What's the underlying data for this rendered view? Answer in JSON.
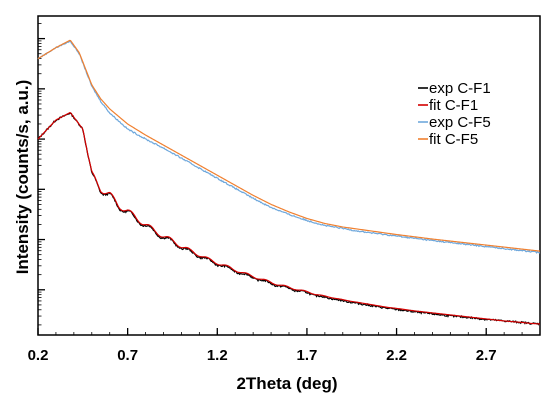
{
  "chart_data": {
    "type": "line",
    "title": "",
    "xlabel": "2Theta (deg)",
    "ylabel": "Intensity (counts/s, a.u.)",
    "xlim": [
      0.2,
      3.0
    ],
    "y_scale": "log",
    "y_ticks_labeled": false,
    "grid": false,
    "legend_position": "top-right",
    "x_ticks": [
      "0.2",
      "0.7",
      "1.2",
      "1.7",
      "2.2",
      "2.7"
    ],
    "series": [
      {
        "name": "exp C-F1",
        "color": "#000000",
        "x": [
          0.2,
          0.3,
          0.38,
          0.45,
          0.5,
          0.55,
          0.6,
          0.65,
          0.7,
          0.75,
          0.8,
          0.85,
          0.9,
          0.95,
          1.0,
          1.05,
          1.1,
          1.15,
          1.2,
          1.25,
          1.3,
          1.35,
          1.4,
          1.45,
          1.5,
          1.55,
          1.6,
          1.65,
          1.7,
          1.75,
          1.8,
          1.85,
          1.9,
          1.95,
          2.0,
          2.05,
          2.1,
          2.15,
          2.2,
          2.3,
          2.4,
          2.5,
          2.6,
          2.7,
          2.8,
          2.9,
          2.95,
          3.0
        ],
        "y": [
          0.0,
          0.38,
          0.52,
          0.2,
          -0.72,
          -1.02,
          -1.12,
          -1.35,
          -1.45,
          -1.6,
          -1.72,
          -1.85,
          -1.95,
          -2.05,
          -2.15,
          -2.25,
          -2.32,
          -2.42,
          -2.48,
          -2.56,
          -2.62,
          -2.7,
          -2.75,
          -2.82,
          -2.87,
          -2.93,
          -2.97,
          -3.02,
          -3.06,
          -3.11,
          -3.15,
          -3.18,
          -3.22,
          -3.25,
          -3.28,
          -3.31,
          -3.34,
          -3.37,
          -3.39,
          -3.44,
          -3.48,
          -3.52,
          -3.55,
          -3.59,
          -3.62,
          -3.65,
          -3.67,
          -3.68
        ]
      },
      {
        "name": "fit C-F1",
        "color": "#d40000",
        "x": [
          0.2,
          0.3,
          0.38,
          0.45,
          0.5,
          0.55,
          0.6,
          0.65,
          0.7,
          0.75,
          0.8,
          0.85,
          0.9,
          0.95,
          1.0,
          1.05,
          1.1,
          1.15,
          1.2,
          1.25,
          1.3,
          1.35,
          1.4,
          1.45,
          1.5,
          1.55,
          1.6,
          1.65,
          1.7,
          1.75,
          1.8,
          1.85,
          1.9,
          1.95,
          2.0,
          2.05,
          2.1,
          2.15,
          2.2,
          2.3,
          2.4,
          2.5,
          2.6,
          2.7,
          2.8,
          2.9,
          2.95,
          3.0
        ],
        "y": [
          0.0,
          0.38,
          0.53,
          0.2,
          -0.7,
          -1.0,
          -1.1,
          -1.33,
          -1.43,
          -1.58,
          -1.7,
          -1.83,
          -1.93,
          -2.03,
          -2.13,
          -2.23,
          -2.3,
          -2.4,
          -2.46,
          -2.54,
          -2.6,
          -2.68,
          -2.73,
          -2.8,
          -2.85,
          -2.91,
          -2.95,
          -3.0,
          -3.04,
          -3.09,
          -3.13,
          -3.16,
          -3.2,
          -3.23,
          -3.26,
          -3.29,
          -3.32,
          -3.35,
          -3.37,
          -3.42,
          -3.46,
          -3.5,
          -3.54,
          -3.58,
          -3.62,
          -3.65,
          -3.67,
          -3.68
        ]
      },
      {
        "name": "exp C-F5",
        "color": "#6fa8dc",
        "x": [
          0.2,
          0.3,
          0.38,
          0.43,
          0.5,
          0.55,
          0.6,
          0.7,
          0.8,
          0.9,
          1.0,
          1.1,
          1.2,
          1.3,
          1.4,
          1.5,
          1.6,
          1.7,
          1.8,
          1.9,
          2.0,
          2.2,
          2.4,
          2.6,
          2.8,
          3.0
        ],
        "y": [
          1.6,
          1.82,
          1.95,
          1.7,
          1.05,
          0.75,
          0.52,
          0.2,
          0.0,
          -0.18,
          -0.38,
          -0.58,
          -0.78,
          -0.98,
          -1.18,
          -1.36,
          -1.5,
          -1.62,
          -1.72,
          -1.78,
          -1.84,
          -1.93,
          -2.02,
          -2.1,
          -2.18,
          -2.26
        ]
      },
      {
        "name": "fit C-F5",
        "color": "#f08030",
        "x": [
          0.2,
          0.3,
          0.38,
          0.43,
          0.5,
          0.55,
          0.6,
          0.7,
          0.8,
          0.9,
          1.0,
          1.1,
          1.2,
          1.3,
          1.4,
          1.5,
          1.6,
          1.7,
          1.8,
          1.9,
          2.0,
          2.2,
          2.4,
          2.6,
          2.8,
          3.0
        ],
        "y": [
          1.6,
          1.82,
          1.97,
          1.72,
          1.08,
          0.8,
          0.6,
          0.3,
          0.08,
          -0.12,
          -0.32,
          -0.52,
          -0.72,
          -0.92,
          -1.12,
          -1.3,
          -1.45,
          -1.58,
          -1.68,
          -1.75,
          -1.8,
          -1.9,
          -1.99,
          -2.07,
          -2.15,
          -2.23
        ]
      }
    ]
  }
}
